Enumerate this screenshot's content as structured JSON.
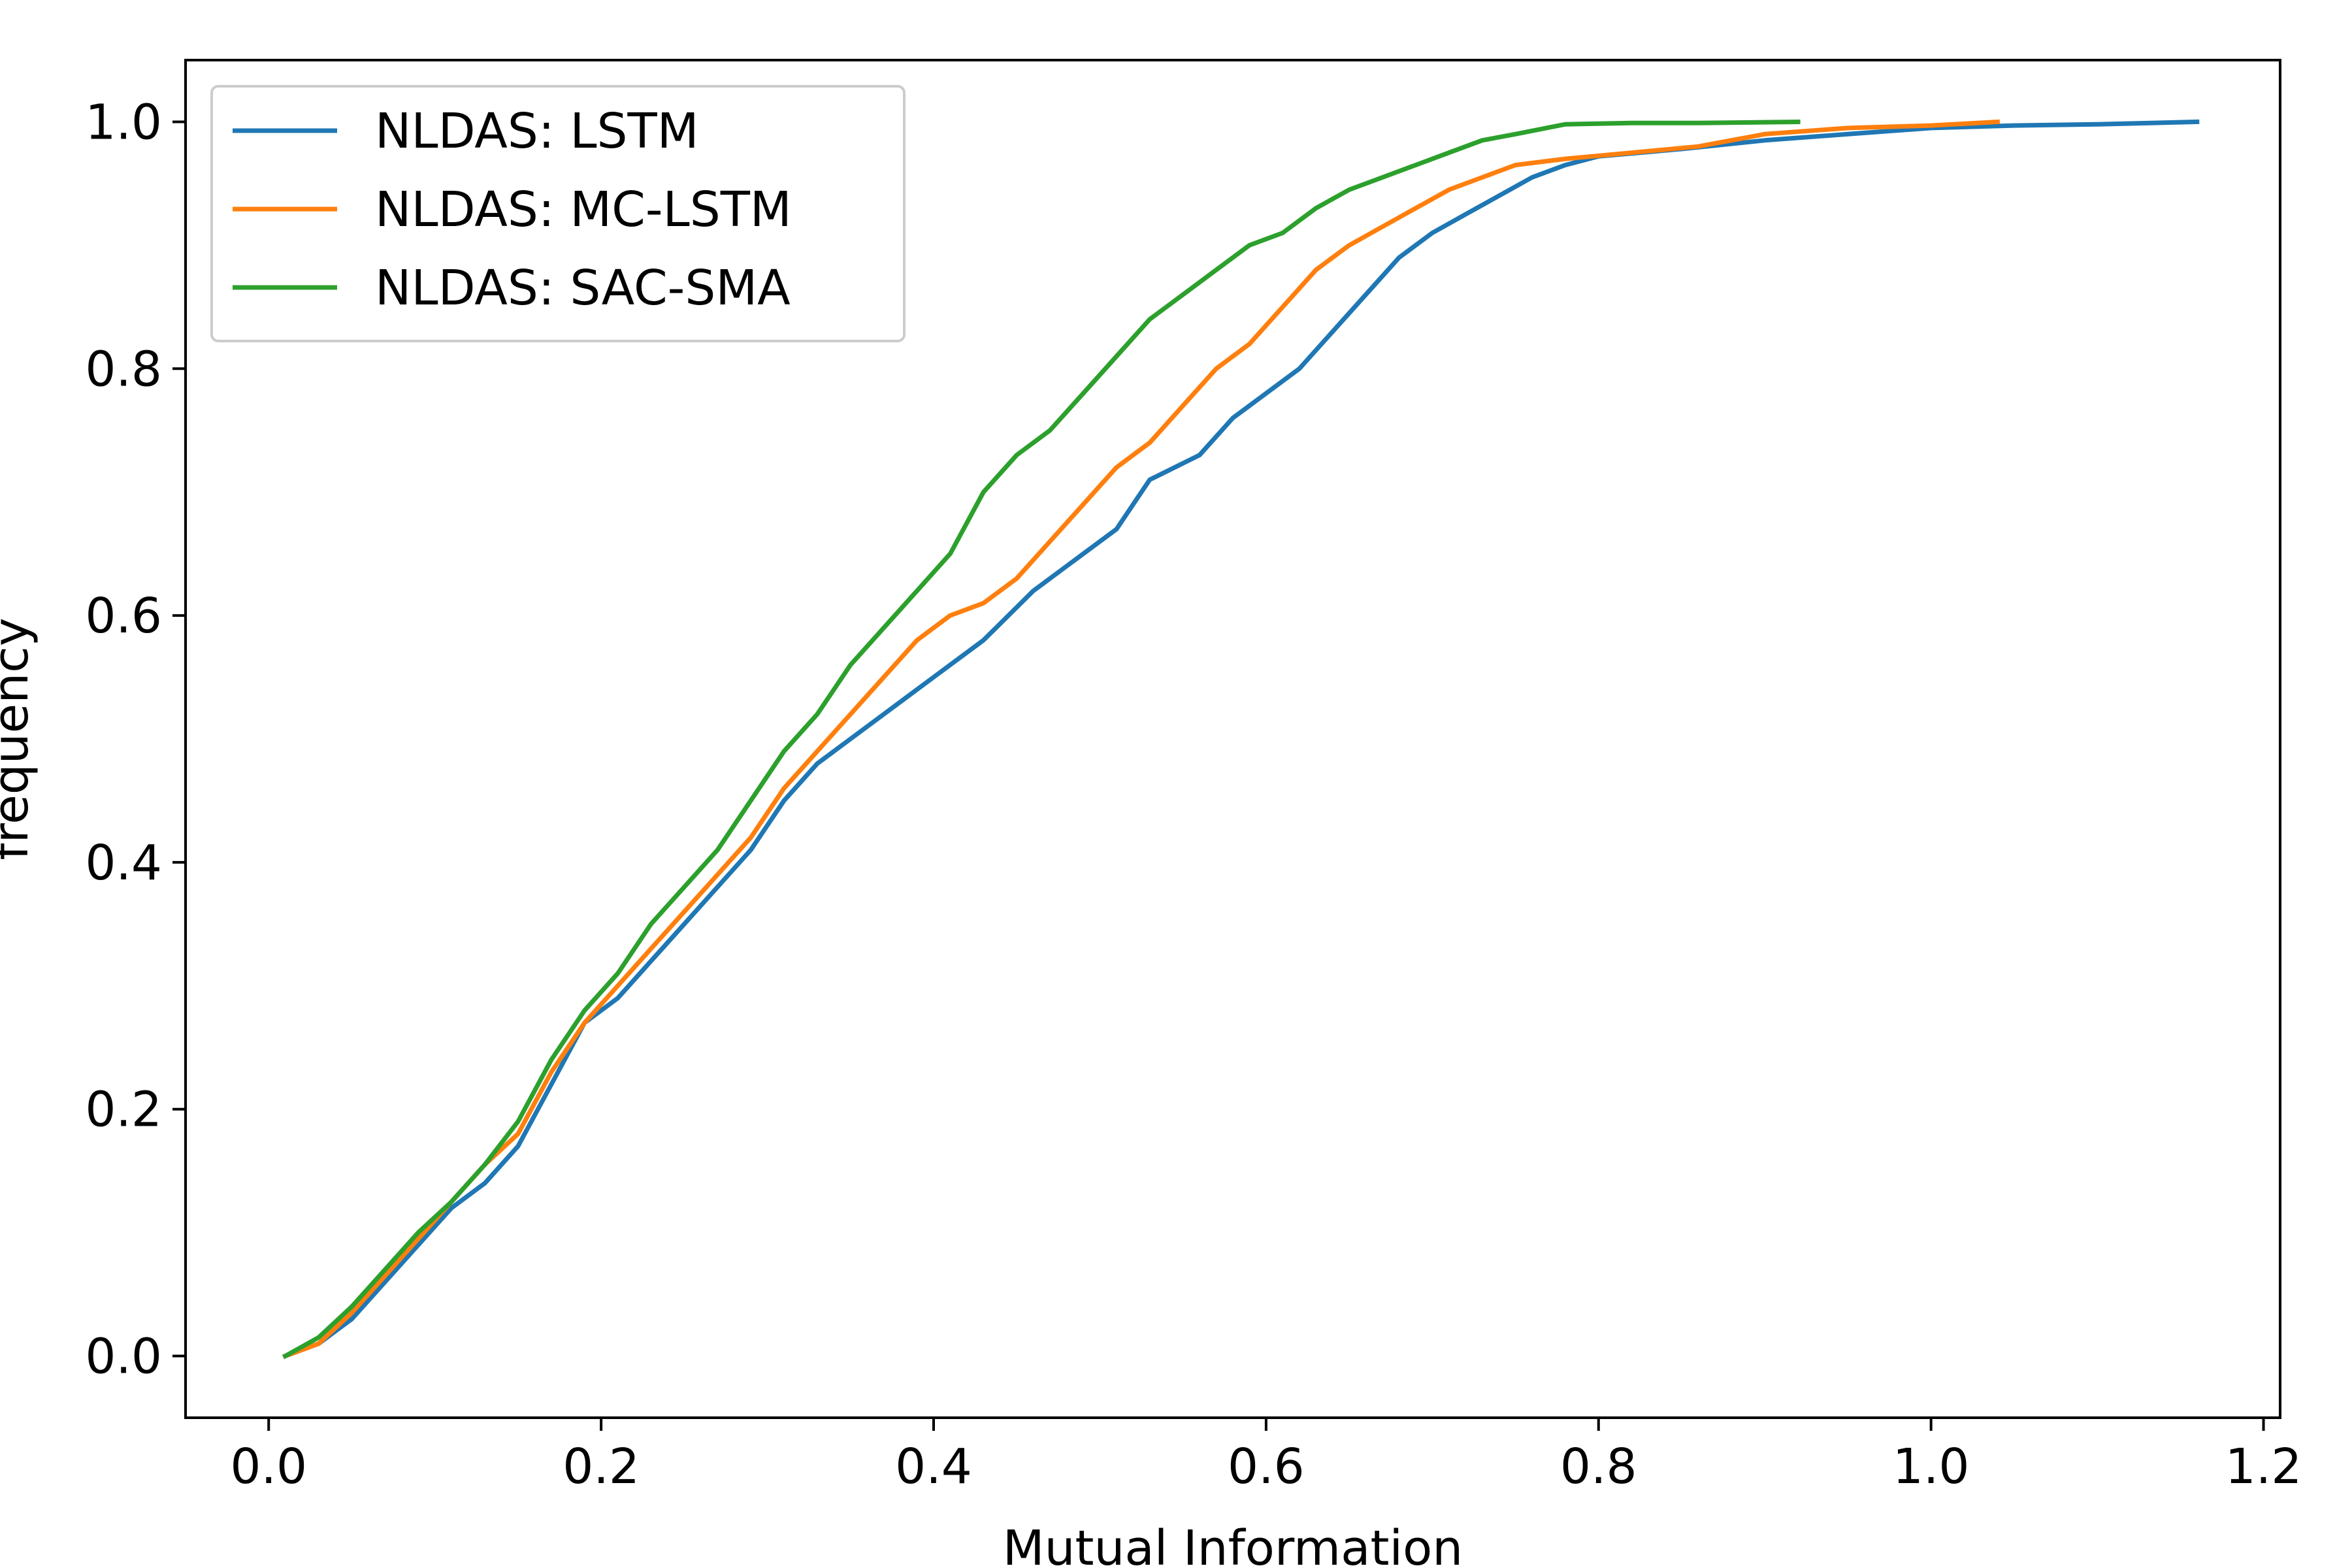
{
  "chart_data": {
    "type": "line",
    "title": "",
    "xlabel": "Mutual Information",
    "ylabel": "frequency",
    "xlim": [
      -0.05,
      1.21
    ],
    "ylim": [
      -0.05,
      1.05
    ],
    "x_ticks": [
      "0.0",
      "0.2",
      "0.4",
      "0.6",
      "0.8",
      "1.0",
      "1.2"
    ],
    "y_ticks": [
      "0.0",
      "0.2",
      "0.4",
      "0.6",
      "0.8",
      "1.0"
    ],
    "grid": false,
    "legend_position": "top-left",
    "series": [
      {
        "name": "NLDAS: LSTM",
        "color": "#1f77b4",
        "x": [
          0.01,
          0.03,
          0.05,
          0.07,
          0.09,
          0.11,
          0.13,
          0.15,
          0.17,
          0.19,
          0.21,
          0.23,
          0.25,
          0.27,
          0.29,
          0.31,
          0.33,
          0.35,
          0.38,
          0.4,
          0.43,
          0.46,
          0.48,
          0.51,
          0.53,
          0.56,
          0.58,
          0.6,
          0.62,
          0.64,
          0.66,
          0.68,
          0.7,
          0.72,
          0.74,
          0.76,
          0.78,
          0.8,
          0.85,
          0.9,
          0.95,
          1.0,
          1.05,
          1.1,
          1.16
        ],
        "y": [
          0.0,
          0.01,
          0.03,
          0.06,
          0.09,
          0.12,
          0.14,
          0.17,
          0.22,
          0.27,
          0.29,
          0.32,
          0.35,
          0.38,
          0.41,
          0.45,
          0.48,
          0.5,
          0.53,
          0.55,
          0.58,
          0.62,
          0.64,
          0.67,
          0.71,
          0.73,
          0.76,
          0.78,
          0.8,
          0.83,
          0.86,
          0.89,
          0.91,
          0.925,
          0.94,
          0.955,
          0.965,
          0.972,
          0.978,
          0.985,
          0.99,
          0.995,
          0.997,
          0.998,
          1.0
        ]
      },
      {
        "name": "NLDAS: MC-LSTM",
        "color": "#ff7f0e",
        "x": [
          0.01,
          0.03,
          0.05,
          0.07,
          0.09,
          0.11,
          0.13,
          0.15,
          0.17,
          0.19,
          0.21,
          0.23,
          0.25,
          0.27,
          0.29,
          0.31,
          0.33,
          0.35,
          0.37,
          0.39,
          0.41,
          0.43,
          0.45,
          0.47,
          0.49,
          0.51,
          0.53,
          0.55,
          0.57,
          0.59,
          0.61,
          0.63,
          0.65,
          0.67,
          0.69,
          0.71,
          0.73,
          0.75,
          0.78,
          0.82,
          0.86,
          0.9,
          0.95,
          1.0,
          1.04
        ],
        "y": [
          0.0,
          0.01,
          0.035,
          0.065,
          0.095,
          0.125,
          0.155,
          0.18,
          0.23,
          0.27,
          0.3,
          0.33,
          0.36,
          0.39,
          0.42,
          0.46,
          0.49,
          0.52,
          0.55,
          0.58,
          0.6,
          0.61,
          0.63,
          0.66,
          0.69,
          0.72,
          0.74,
          0.77,
          0.8,
          0.82,
          0.85,
          0.88,
          0.9,
          0.915,
          0.93,
          0.945,
          0.955,
          0.965,
          0.97,
          0.975,
          0.98,
          0.99,
          0.995,
          0.997,
          1.0
        ]
      },
      {
        "name": "NLDAS: SAC-SMA",
        "color": "#2ca02c",
        "x": [
          0.01,
          0.03,
          0.05,
          0.07,
          0.09,
          0.11,
          0.13,
          0.15,
          0.17,
          0.19,
          0.21,
          0.23,
          0.25,
          0.27,
          0.29,
          0.31,
          0.33,
          0.35,
          0.37,
          0.39,
          0.41,
          0.43,
          0.45,
          0.47,
          0.49,
          0.51,
          0.53,
          0.55,
          0.57,
          0.59,
          0.61,
          0.63,
          0.65,
          0.67,
          0.69,
          0.71,
          0.73,
          0.75,
          0.78,
          0.82,
          0.86,
          0.92
        ],
        "y": [
          0.0,
          0.015,
          0.04,
          0.07,
          0.1,
          0.125,
          0.155,
          0.19,
          0.24,
          0.28,
          0.31,
          0.35,
          0.38,
          0.41,
          0.45,
          0.49,
          0.52,
          0.56,
          0.59,
          0.62,
          0.65,
          0.7,
          0.73,
          0.75,
          0.78,
          0.81,
          0.84,
          0.86,
          0.88,
          0.9,
          0.91,
          0.93,
          0.945,
          0.955,
          0.965,
          0.975,
          0.985,
          0.99,
          0.998,
          0.999,
          0.999,
          1.0
        ]
      }
    ]
  }
}
